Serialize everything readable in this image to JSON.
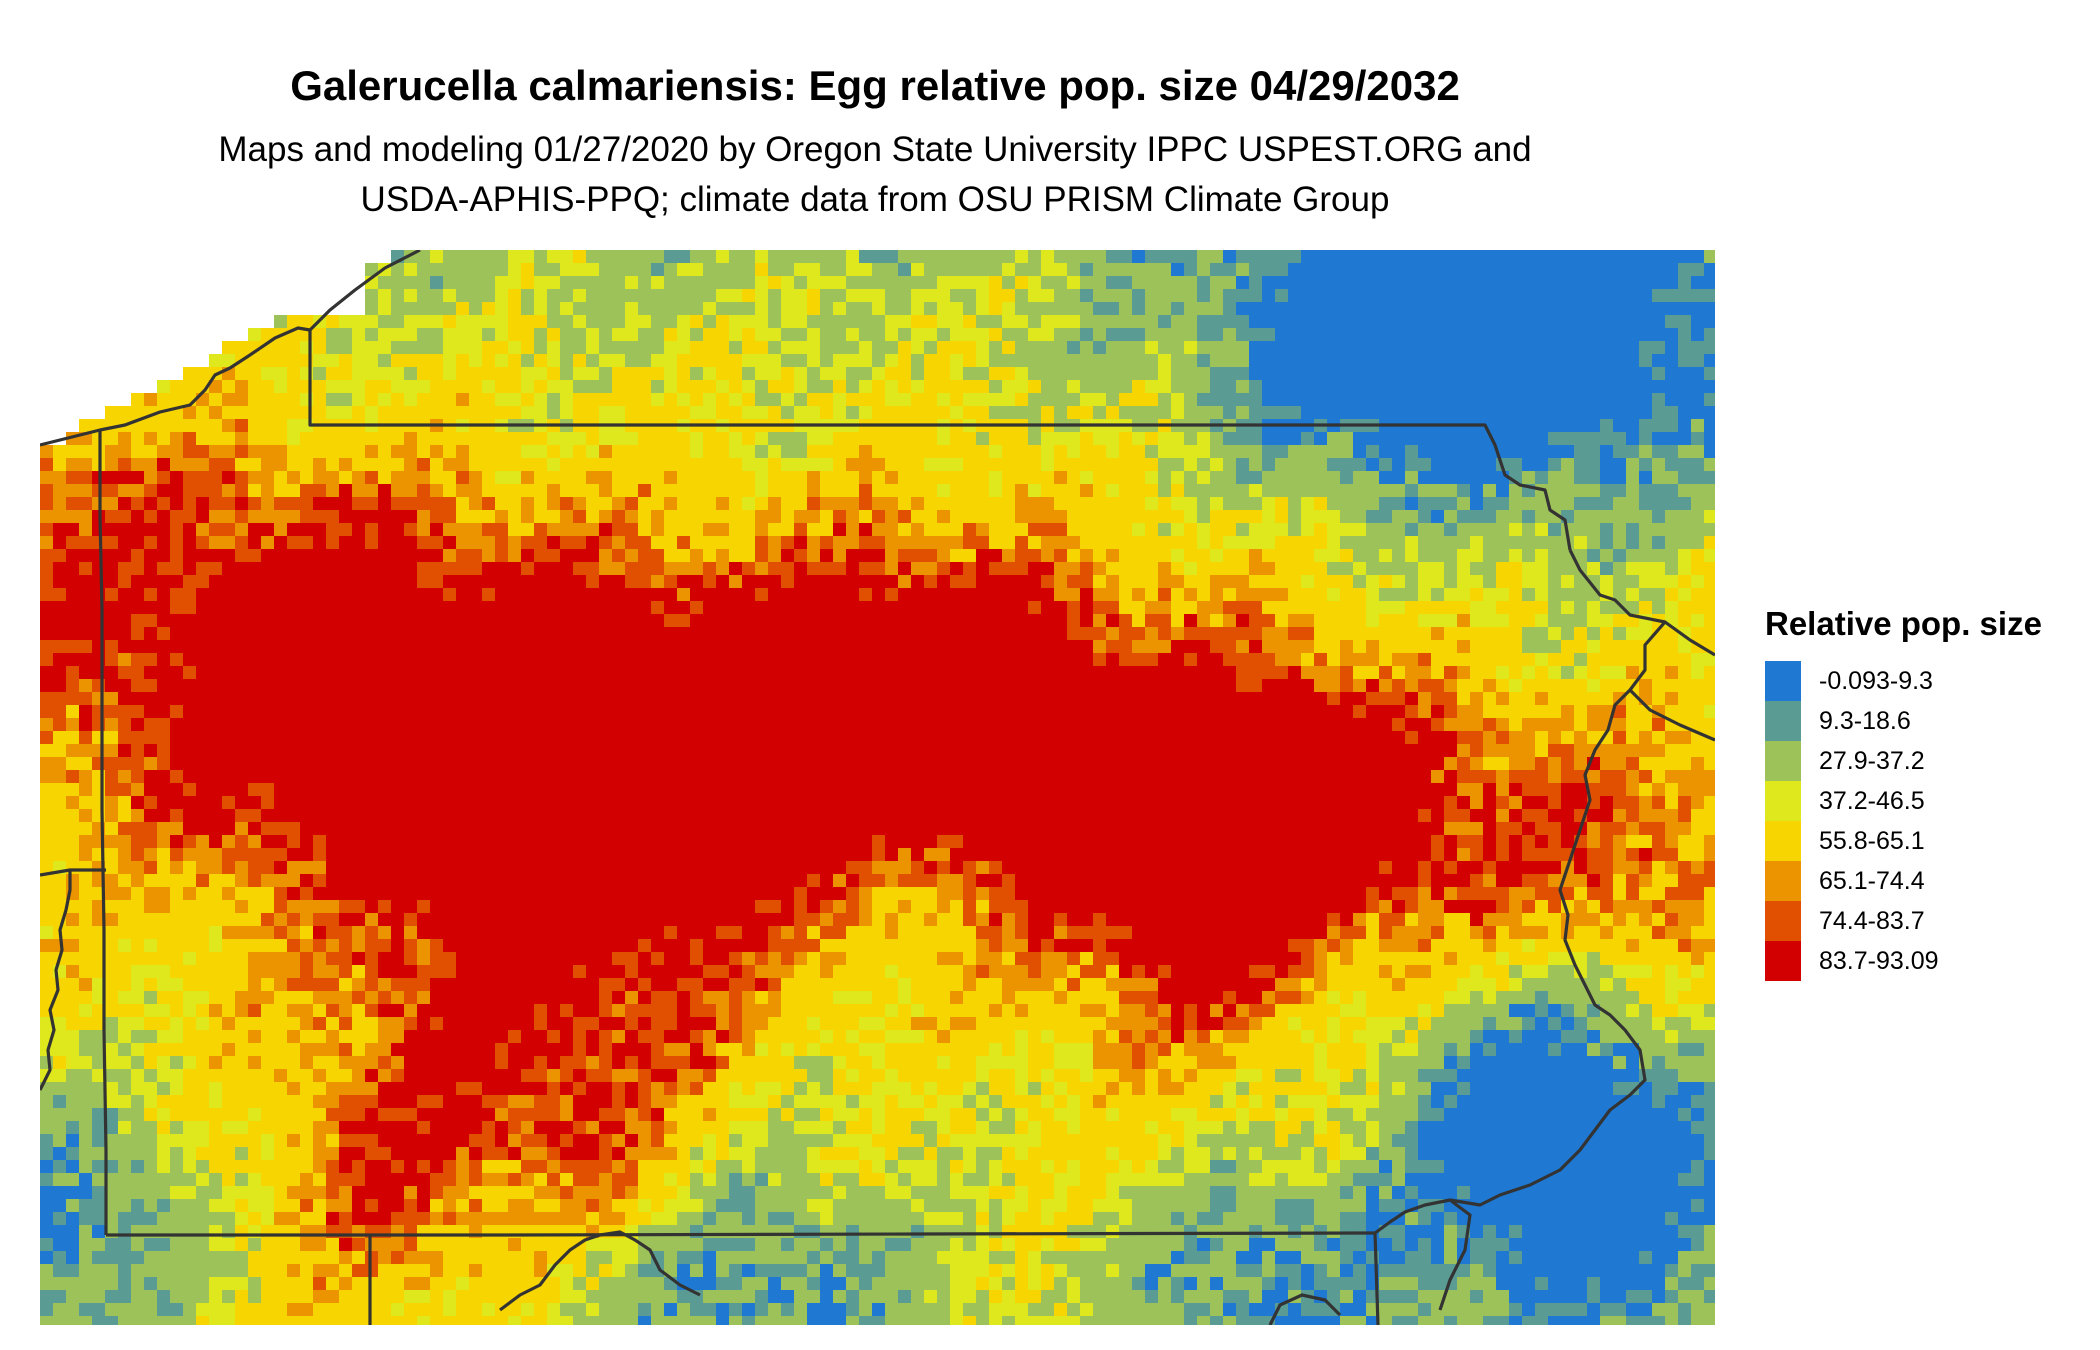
{
  "title": "Galerucella calmariensis: Egg relative pop. size 04/29/2032",
  "subtitle_line1": "Maps and modeling 01/27/2020 by Oregon State University IPPC USPEST.ORG and",
  "subtitle_line2": "USDA-APHIS-PPQ; climate data from OSU PRISM Climate Group",
  "legend": {
    "title": "Relative pop. size",
    "classes": [
      {
        "label": "-0.093-9.3",
        "color": "#1f78d1"
      },
      {
        "label": "9.3-18.6",
        "color": "#5a9b94"
      },
      {
        "label": "27.9-37.2",
        "color": "#9ec25a"
      },
      {
        "label": "37.2-46.5",
        "color": "#dfe81c"
      },
      {
        "label": "55.8-65.1",
        "color": "#f7d500"
      },
      {
        "label": "65.1-74.4",
        "color": "#ec9300"
      },
      {
        "label": "74.4-83.7",
        "color": "#e05000"
      },
      {
        "label": "83.7-93.09",
        "color": "#d20000"
      }
    ]
  },
  "border_color": "#333333"
}
